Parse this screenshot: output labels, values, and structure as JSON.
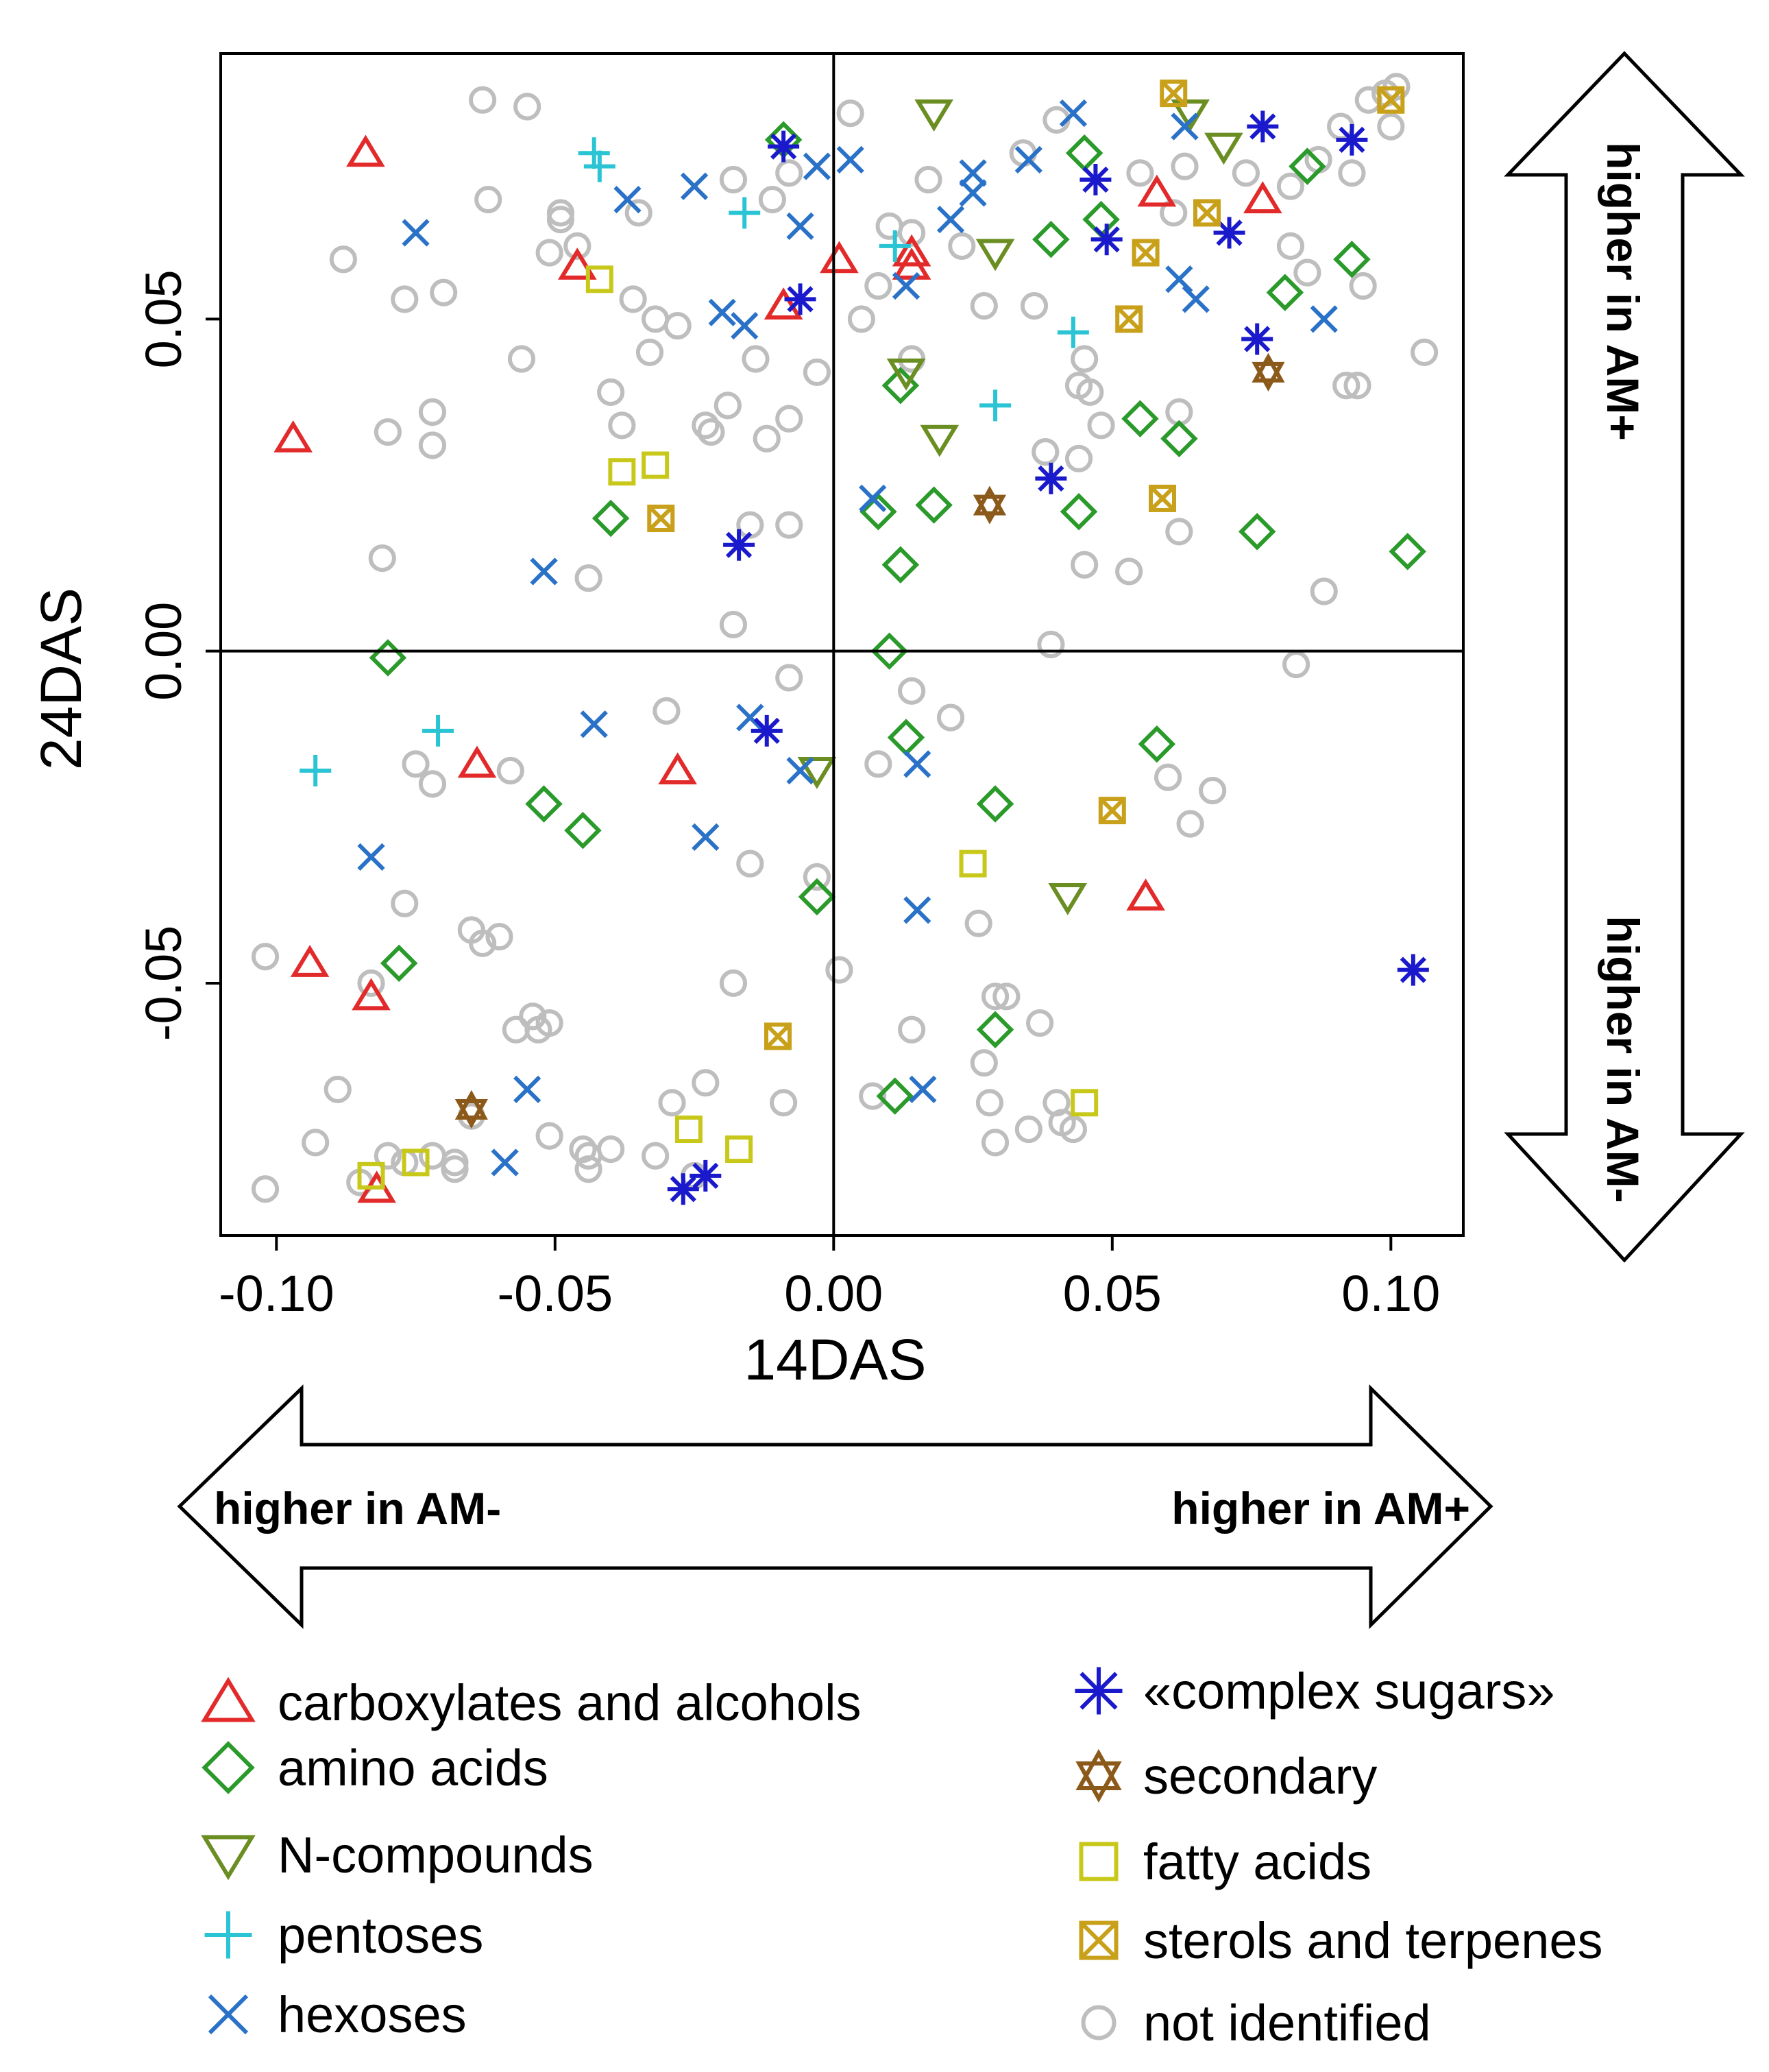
{
  "chart_data": {
    "type": "scatter",
    "xlabel": "14DAS",
    "ylabel": "24DAS",
    "xlim": [
      -0.11,
      0.113
    ],
    "ylim": [
      -0.088,
      0.09
    ],
    "xticks": [
      -0.1,
      -0.05,
      0.0,
      0.05,
      0.1
    ],
    "xtick_labels": [
      "-0.10",
      "-0.05",
      "0.00",
      "0.05",
      "0.10"
    ],
    "yticks": [
      0.05,
      0.0,
      -0.05
    ],
    "ytick_labels": [
      "0.05",
      "0.00",
      "-0.05"
    ],
    "reference_lines": {
      "x": 0,
      "y": 0
    },
    "arrows": {
      "right_up": "higher in AM+",
      "right_down": "higher in AM-",
      "bottom_left": "higher in AM-",
      "bottom_right": "higher in AM+"
    },
    "series": [
      {
        "name": "carboxylates and alcohols",
        "marker": "triangle-up",
        "color": "#e32a2a",
        "points": [
          [
            -0.084,
            0.075
          ],
          [
            -0.097,
            0.032
          ],
          [
            -0.046,
            0.058
          ],
          [
            -0.009,
            0.052
          ],
          [
            0.001,
            0.059
          ],
          [
            0.014,
            0.06
          ],
          [
            0.014,
            0.058
          ],
          [
            0.058,
            0.069
          ],
          [
            0.077,
            0.068
          ],
          [
            -0.028,
            -0.018
          ],
          [
            -0.064,
            -0.017
          ],
          [
            -0.094,
            -0.047
          ],
          [
            -0.083,
            -0.052
          ],
          [
            0.056,
            -0.037
          ],
          [
            -0.082,
            -0.081
          ]
        ]
      },
      {
        "name": "amino acids",
        "marker": "diamond",
        "color": "#2a9a2a",
        "points": [
          [
            -0.009,
            0.077
          ],
          [
            0.039,
            0.062
          ],
          [
            0.045,
            0.075
          ],
          [
            0.048,
            0.065
          ],
          [
            0.085,
            0.073
          ],
          [
            0.093,
            0.059
          ],
          [
            0.081,
            0.054
          ],
          [
            0.012,
            0.04
          ],
          [
            0.055,
            0.035
          ],
          [
            0.062,
            0.032
          ],
          [
            -0.04,
            0.02
          ],
          [
            0.008,
            0.021
          ],
          [
            0.018,
            0.022
          ],
          [
            0.044,
            0.021
          ],
          [
            0.076,
            0.018
          ],
          [
            0.012,
            0.013
          ],
          [
            0.103,
            0.015
          ],
          [
            -0.08,
            -0.001
          ],
          [
            0.01,
            0.0
          ],
          [
            0.013,
            -0.013
          ],
          [
            0.058,
            -0.014
          ],
          [
            -0.052,
            -0.023
          ],
          [
            -0.045,
            -0.027
          ],
          [
            0.029,
            -0.023
          ],
          [
            -0.003,
            -0.037
          ],
          [
            -0.078,
            -0.047
          ],
          [
            0.029,
            -0.057
          ],
          [
            0.011,
            -0.067
          ]
        ]
      },
      {
        "name": "N-compounds",
        "marker": "triangle-down",
        "color": "#6b8e23",
        "points": [
          [
            0.018,
            0.081
          ],
          [
            0.064,
            0.081
          ],
          [
            0.07,
            0.076
          ],
          [
            0.029,
            0.06
          ],
          [
            0.013,
            0.042
          ],
          [
            0.019,
            0.032
          ],
          [
            -0.003,
            -0.018
          ],
          [
            0.042,
            -0.037
          ]
        ]
      },
      {
        "name": "pentoses",
        "marker": "plus",
        "color": "#2ac4d4",
        "points": [
          [
            -0.043,
            0.075
          ],
          [
            -0.042,
            0.073
          ],
          [
            -0.016,
            0.066
          ],
          [
            0.011,
            0.061
          ],
          [
            0.029,
            0.037
          ],
          [
            0.043,
            0.048
          ],
          [
            -0.071,
            -0.012
          ],
          [
            -0.093,
            -0.018
          ]
        ]
      },
      {
        "name": "hexoses",
        "marker": "x",
        "color": "#2a72c8",
        "points": [
          [
            -0.075,
            0.063
          ],
          [
            -0.037,
            0.068
          ],
          [
            -0.025,
            0.07
          ],
          [
            -0.006,
            0.064
          ],
          [
            -0.003,
            0.073
          ],
          [
            0.003,
            0.074
          ],
          [
            0.025,
            0.069
          ],
          [
            0.025,
            0.072
          ],
          [
            0.035,
            0.074
          ],
          [
            0.043,
            0.081
          ],
          [
            0.063,
            0.079
          ],
          [
            0.021,
            0.065
          ],
          [
            0.013,
            0.055
          ],
          [
            0.062,
            0.056
          ],
          [
            0.065,
            0.053
          ],
          [
            0.088,
            0.05
          ],
          [
            -0.02,
            0.051
          ],
          [
            -0.016,
            0.049
          ],
          [
            -0.052,
            0.012
          ],
          [
            0.007,
            0.023
          ],
          [
            -0.043,
            -0.011
          ],
          [
            -0.015,
            -0.01
          ],
          [
            -0.006,
            -0.018
          ],
          [
            0.015,
            -0.017
          ],
          [
            -0.083,
            -0.031
          ],
          [
            -0.023,
            -0.028
          ],
          [
            0.015,
            -0.039
          ],
          [
            -0.055,
            -0.066
          ],
          [
            0.016,
            -0.066
          ],
          [
            -0.059,
            -0.077
          ]
        ]
      },
      {
        "name": "«complex sugars»",
        "marker": "asterisk",
        "color": "#1a1acc",
        "points": [
          [
            -0.009,
            0.076
          ],
          [
            0.047,
            0.071
          ],
          [
            0.077,
            0.079
          ],
          [
            0.093,
            0.077
          ],
          [
            0.071,
            0.063
          ],
          [
            0.049,
            0.062
          ],
          [
            -0.006,
            0.053
          ],
          [
            0.076,
            0.047
          ],
          [
            0.039,
            0.026
          ],
          [
            -0.017,
            0.016
          ],
          [
            -0.012,
            -0.012
          ],
          [
            0.104,
            -0.048
          ],
          [
            -0.027,
            -0.081
          ],
          [
            -0.023,
            -0.079
          ]
        ]
      },
      {
        "name": "secondary",
        "marker": "hexagram",
        "color": "#8b5a1a",
        "points": [
          [
            0.078,
            0.042
          ],
          [
            0.028,
            0.022
          ],
          [
            -0.065,
            -0.069
          ]
        ]
      },
      {
        "name": "fatty acids",
        "marker": "square",
        "color": "#c8c81a",
        "points": [
          [
            -0.042,
            0.056
          ],
          [
            -0.038,
            0.027
          ],
          [
            -0.032,
            0.028
          ],
          [
            0.025,
            -0.032
          ],
          [
            0.045,
            -0.068
          ],
          [
            -0.026,
            -0.072
          ],
          [
            -0.017,
            -0.075
          ],
          [
            -0.083,
            -0.079
          ],
          [
            -0.075,
            -0.077
          ]
        ]
      },
      {
        "name": "sterols and terpenes",
        "marker": "boxed-x",
        "color": "#c8a01a",
        "points": [
          [
            0.061,
            0.084
          ],
          [
            0.067,
            0.066
          ],
          [
            0.056,
            0.06
          ],
          [
            0.053,
            0.05
          ],
          [
            0.059,
            0.023
          ],
          [
            -0.031,
            0.02
          ],
          [
            0.05,
            -0.024
          ],
          [
            -0.01,
            -0.058
          ],
          [
            0.1,
            0.083
          ]
        ]
      },
      {
        "name": "not identified",
        "marker": "circle",
        "color": "#bebebe",
        "points": [
          [
            -0.063,
            0.083
          ],
          [
            -0.055,
            0.082
          ],
          [
            -0.062,
            0.068
          ],
          [
            -0.088,
            0.059
          ],
          [
            -0.077,
            0.053
          ],
          [
            -0.07,
            0.054
          ],
          [
            -0.051,
            0.06
          ],
          [
            -0.049,
            0.066
          ],
          [
            -0.049,
            0.065
          ],
          [
            -0.046,
            0.061
          ],
          [
            -0.036,
            0.053
          ],
          [
            -0.032,
            0.05
          ],
          [
            -0.033,
            0.045
          ],
          [
            -0.028,
            0.049
          ],
          [
            -0.035,
            0.066
          ],
          [
            -0.018,
            0.071
          ],
          [
            -0.011,
            0.068
          ],
          [
            -0.008,
            0.072
          ],
          [
            0.003,
            0.081
          ],
          [
            0.01,
            0.064
          ],
          [
            0.014,
            0.063
          ],
          [
            0.017,
            0.071
          ],
          [
            0.023,
            0.061
          ],
          [
            0.034,
            0.075
          ],
          [
            0.04,
            0.08
          ],
          [
            0.055,
            0.072
          ],
          [
            0.061,
            0.066
          ],
          [
            0.063,
            0.073
          ],
          [
            0.074,
            0.072
          ],
          [
            0.082,
            0.07
          ],
          [
            0.087,
            0.074
          ],
          [
            0.091,
            0.079
          ],
          [
            0.093,
            0.072
          ],
          [
            0.096,
            0.083
          ],
          [
            0.099,
            0.084
          ],
          [
            0.101,
            0.085
          ],
          [
            0.1,
            0.079
          ],
          [
            -0.056,
            0.044
          ],
          [
            -0.08,
            0.033
          ],
          [
            -0.072,
            0.031
          ],
          [
            -0.072,
            0.036
          ],
          [
            -0.04,
            0.039
          ],
          [
            -0.038,
            0.034
          ],
          [
            -0.023,
            0.034
          ],
          [
            -0.022,
            0.033
          ],
          [
            -0.019,
            0.037
          ],
          [
            -0.012,
            0.032
          ],
          [
            -0.008,
            0.035
          ],
          [
            -0.014,
            0.044
          ],
          [
            -0.003,
            0.042
          ],
          [
            -0.015,
            0.019
          ],
          [
            -0.008,
            0.019
          ],
          [
            -0.044,
            0.011
          ],
          [
            0.005,
            0.05
          ],
          [
            0.008,
            0.055
          ],
          [
            0.014,
            0.044
          ],
          [
            0.027,
            0.052
          ],
          [
            0.036,
            0.052
          ],
          [
            0.045,
            0.044
          ],
          [
            0.044,
            0.04
          ],
          [
            0.046,
            0.039
          ],
          [
            0.048,
            0.034
          ],
          [
            0.062,
            0.036
          ],
          [
            0.044,
            0.029
          ],
          [
            0.038,
            0.03
          ],
          [
            0.045,
            0.013
          ],
          [
            0.053,
            0.012
          ],
          [
            0.062,
            0.018
          ],
          [
            0.085,
            0.057
          ],
          [
            0.082,
            0.061
          ],
          [
            0.095,
            0.055
          ],
          [
            0.092,
            0.04
          ],
          [
            0.094,
            0.04
          ],
          [
            0.106,
            0.045
          ],
          [
            0.088,
            0.009
          ],
          [
            0.083,
            -0.002
          ],
          [
            0.039,
            0.001
          ],
          [
            -0.081,
            0.014
          ],
          [
            -0.018,
            0.004
          ],
          [
            -0.008,
            -0.004
          ],
          [
            0.014,
            -0.006
          ],
          [
            0.021,
            -0.01
          ],
          [
            0.008,
            -0.017
          ],
          [
            0.06,
            -0.019
          ],
          [
            0.064,
            -0.026
          ],
          [
            0.068,
            -0.021
          ],
          [
            -0.03,
            -0.009
          ],
          [
            -0.075,
            -0.017
          ],
          [
            -0.072,
            -0.02
          ],
          [
            -0.058,
            -0.018
          ],
          [
            -0.015,
            -0.032
          ],
          [
            -0.003,
            -0.034
          ],
          [
            -0.077,
            -0.038
          ],
          [
            -0.065,
            -0.042
          ],
          [
            -0.063,
            -0.044
          ],
          [
            -0.06,
            -0.043
          ],
          [
            -0.102,
            -0.046
          ],
          [
            -0.083,
            -0.05
          ],
          [
            -0.089,
            -0.066
          ],
          [
            -0.057,
            -0.057
          ],
          [
            -0.054,
            -0.055
          ],
          [
            -0.053,
            -0.057
          ],
          [
            -0.051,
            -0.056
          ],
          [
            -0.018,
            -0.05
          ],
          [
            0.001,
            -0.048
          ],
          [
            0.026,
            -0.041
          ],
          [
            0.014,
            -0.057
          ],
          [
            0.029,
            -0.052
          ],
          [
            0.031,
            -0.052
          ],
          [
            0.037,
            -0.056
          ],
          [
            0.027,
            -0.062
          ],
          [
            -0.023,
            -0.065
          ],
          [
            -0.029,
            -0.068
          ],
          [
            -0.009,
            -0.068
          ],
          [
            0.007,
            -0.067
          ],
          [
            0.028,
            -0.068
          ],
          [
            0.04,
            -0.068
          ],
          [
            0.041,
            -0.071
          ],
          [
            0.043,
            -0.072
          ],
          [
            0.035,
            -0.072
          ],
          [
            0.029,
            -0.074
          ],
          [
            -0.093,
            -0.074
          ],
          [
            -0.08,
            -0.076
          ],
          [
            -0.077,
            -0.077
          ],
          [
            -0.072,
            -0.076
          ],
          [
            -0.068,
            -0.077
          ],
          [
            -0.068,
            -0.078
          ],
          [
            -0.065,
            -0.07
          ],
          [
            -0.051,
            -0.073
          ],
          [
            -0.045,
            -0.075
          ],
          [
            -0.044,
            -0.076
          ],
          [
            -0.04,
            -0.075
          ],
          [
            -0.044,
            -0.078
          ],
          [
            -0.032,
            -0.076
          ],
          [
            -0.102,
            -0.081
          ],
          [
            -0.085,
            -0.08
          ],
          [
            -0.025,
            -0.079
          ]
        ]
      }
    ],
    "legend": {
      "placement": "bottom",
      "columns": 2,
      "order": [
        "carboxylates and alcohols",
        "amino acids",
        "N-compounds",
        "pentoses",
        "hexoses",
        "«complex sugars»",
        "secondary",
        "fatty acids",
        "sterols and terpenes",
        "not identified"
      ]
    }
  }
}
